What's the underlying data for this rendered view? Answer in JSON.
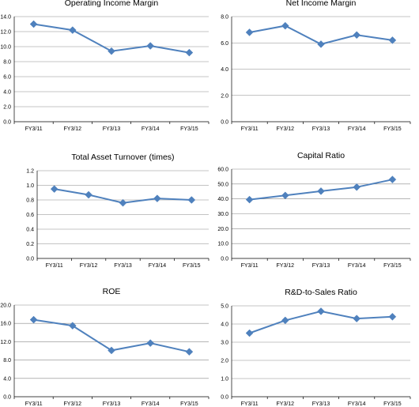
{
  "colors": {
    "series": "#4f81bd",
    "grid": "#8a8a8a",
    "axis": "#000000",
    "background": "#ffffff"
  },
  "chart_data": [
    {
      "type": "line",
      "title": "Operating Income Margin",
      "categories": [
        "FY3/11",
        "FY3/12",
        "FY3/13",
        "FY3/14",
        "FY3/15"
      ],
      "values": [
        13.0,
        12.2,
        9.4,
        10.1,
        9.2
      ],
      "ylim": [
        0,
        14
      ],
      "yticks": [
        "0.0",
        "2.0",
        "4.0",
        "6.0",
        "8.0",
        "10.0",
        "12.0",
        "14.0"
      ],
      "grid": true,
      "marker": "diamond"
    },
    {
      "type": "line",
      "title": "Net Income Margin",
      "categories": [
        "FY3/11",
        "FY3/12",
        "FY3/13",
        "FY3/14",
        "FY3/15"
      ],
      "values": [
        6.8,
        7.3,
        5.9,
        6.6,
        6.2
      ],
      "ylim": [
        0,
        8
      ],
      "yticks": [
        "0.0",
        "2.0",
        "4.0",
        "6.0",
        "8.0"
      ],
      "grid": true,
      "marker": "diamond"
    },
    {
      "type": "line",
      "title": "Total Asset Turnover (times)",
      "categories": [
        "FY3/11",
        "FY3/12",
        "FY3/13",
        "FY3/14",
        "FY3/15"
      ],
      "values": [
        0.95,
        0.87,
        0.76,
        0.82,
        0.8
      ],
      "ylim": [
        0,
        1.2
      ],
      "yticks": [
        "0.0",
        "0.2",
        "0.4",
        "0.6",
        "0.8",
        "1.0",
        "1.2"
      ],
      "grid": true,
      "marker": "diamond"
    },
    {
      "type": "line",
      "title": "Capital Ratio",
      "categories": [
        "FY3/11",
        "FY3/12",
        "FY3/13",
        "FY3/14",
        "FY3/15"
      ],
      "values": [
        39.5,
        42.3,
        45.2,
        47.9,
        53.0
      ],
      "ylim": [
        0,
        60
      ],
      "yticks": [
        "0.0",
        "10.0",
        "20.0",
        "30.0",
        "40.0",
        "50.0",
        "60.0"
      ],
      "grid": true,
      "marker": "diamond"
    },
    {
      "type": "line",
      "title": "ROE",
      "categories": [
        "FY3/11",
        "FY3/12",
        "FY3/13",
        "FY3/14",
        "FY3/15"
      ],
      "values": [
        16.8,
        15.5,
        10.1,
        11.7,
        9.8
      ],
      "ylim": [
        0,
        20
      ],
      "yticks": [
        "0.0",
        "4.0",
        "8.0",
        "12.0",
        "16.0",
        "20.0"
      ],
      "grid": true,
      "marker": "diamond"
    },
    {
      "type": "line",
      "title": "R&D-to-Sales Ratio",
      "categories": [
        "FY3/11",
        "FY3/12",
        "FY3/13",
        "FY3/14",
        "FY3/15"
      ],
      "values": [
        3.5,
        4.2,
        4.7,
        4.3,
        4.4
      ],
      "ylim": [
        0,
        5
      ],
      "yticks": [
        "0.0",
        "1.0",
        "2.0",
        "3.0",
        "4.0",
        "5.0"
      ],
      "grid": true,
      "marker": "diamond"
    }
  ]
}
